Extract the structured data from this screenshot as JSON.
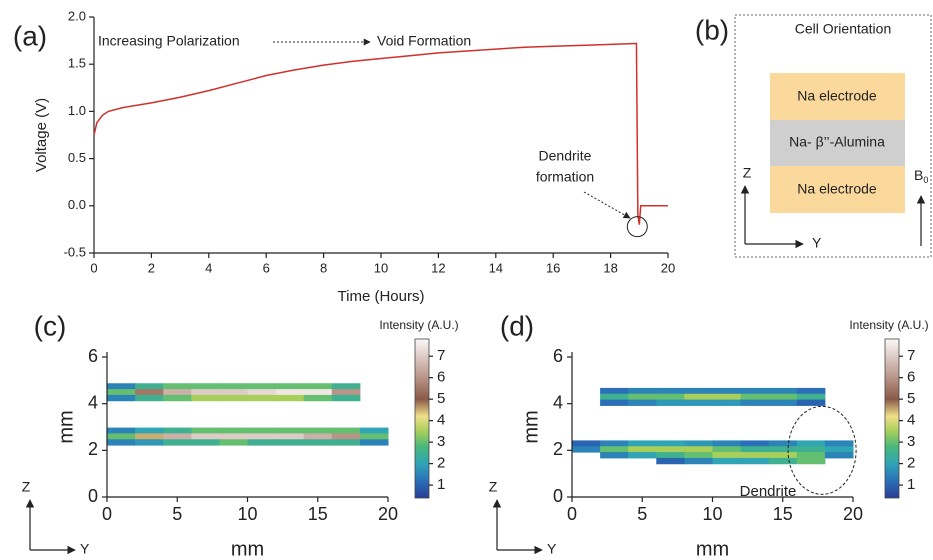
{
  "chart_data": [
    {
      "type": "line",
      "label": "(a)",
      "xlabel": "Time (Hours)",
      "ylabel": "Voltage (V)",
      "x": [
        0,
        0.1,
        0.3,
        0.5,
        1,
        2,
        3,
        4,
        5,
        6,
        7,
        8,
        9,
        10,
        11,
        12,
        13,
        14,
        15,
        16,
        17,
        18,
        18.9,
        18.95,
        19,
        19.05,
        20
      ],
      "series": [
        {
          "color": "#d0312d",
          "values": [
            0.75,
            0.88,
            0.96,
            1.0,
            1.04,
            1.09,
            1.15,
            1.22,
            1.3,
            1.38,
            1.44,
            1.49,
            1.53,
            1.56,
            1.59,
            1.62,
            1.64,
            1.66,
            1.68,
            1.69,
            1.7,
            1.71,
            1.72,
            -0.1,
            -0.2,
            0.0,
            0.0
          ]
        }
      ],
      "xlim": [
        0,
        20
      ],
      "xticks": [
        0,
        2,
        4,
        6,
        8,
        10,
        12,
        14,
        16,
        18,
        20
      ],
      "ylim": [
        -0.5,
        2.0
      ],
      "yticks": [
        -0.5,
        {
          "value": 0,
          "label": "0.0"
        },
        0.5,
        {
          "value": 1,
          "label": "1.0"
        },
        1.5,
        {
          "value": 2,
          "label": "2.0"
        }
      ],
      "annotations": [
        "Increasing Polarization",
        "Void Formation",
        "Dendrite",
        "formation"
      ]
    },
    {
      "type": "heatmap",
      "label": "(c)",
      "xlabel": "mm",
      "ylabel": "mm",
      "x": [
        1,
        3,
        5,
        7,
        9,
        11,
        13,
        15,
        17,
        19
      ],
      "y": [
        4.75,
        4.5,
        4.25,
        2.85,
        2.6,
        2.35
      ],
      "values": [
        [
          1.5,
          2.5,
          3,
          3,
          3,
          3,
          3,
          3,
          2.5,
          null
        ],
        [
          3,
          5.5,
          6.5,
          7,
          7,
          7.2,
          7.5,
          7.5,
          6,
          null
        ],
        [
          1.5,
          2.5,
          3,
          3.5,
          3.5,
          3.5,
          3.5,
          3,
          2.5,
          null
        ],
        [
          1.5,
          2,
          2.5,
          3,
          3,
          3,
          3,
          3,
          3,
          2
        ],
        [
          3,
          4.5,
          6.5,
          7,
          7,
          7,
          7,
          6.5,
          6,
          3
        ],
        [
          1.5,
          1.8,
          2.5,
          2.5,
          3,
          2.5,
          2.5,
          2.5,
          2.5,
          1.5
        ]
      ],
      "xlim": [
        0,
        20
      ],
      "xticks": [
        0,
        5,
        10,
        15,
        20
      ],
      "ylim": [
        0,
        6
      ],
      "yticks": [
        0,
        2,
        4,
        6
      ],
      "colorbar": {
        "title": "Intensity (A.U.)",
        "lim": [
          0.4,
          7.8
        ],
        "ticks": [
          1,
          2,
          3,
          4,
          5,
          6,
          7
        ],
        "colorscale": [
          [
            0.4,
            "#283d96"
          ],
          [
            1.2,
            "#2a6fb8"
          ],
          [
            2,
            "#2fa5b5"
          ],
          [
            2.8,
            "#49b87a"
          ],
          [
            3.5,
            "#a8cf5a"
          ],
          [
            4.2,
            "#f0e08a"
          ],
          [
            5,
            "#8a5a48"
          ],
          [
            6,
            "#b89488"
          ],
          [
            7.8,
            "#fbf8f8"
          ]
        ]
      },
      "axes": {
        "z": "Z",
        "y": "Y"
      }
    },
    {
      "type": "heatmap",
      "label": "(d)",
      "xlabel": "mm",
      "ylabel": "mm",
      "x": [
        1,
        3,
        5,
        7,
        9,
        11,
        13,
        15,
        17,
        19
      ],
      "y": [
        4.55,
        4.3,
        4.05,
        2.3,
        2.05,
        1.8,
        1.55
      ],
      "values": [
        [
          null,
          1.2,
          1.5,
          1.5,
          1.5,
          1.5,
          1.5,
          1.5,
          1.2,
          null
        ],
        [
          null,
          2.5,
          3,
          3,
          3.5,
          3.5,
          3,
          3,
          2.5,
          null
        ],
        [
          null,
          1.2,
          1.5,
          1.8,
          1.8,
          1.8,
          1.5,
          1.5,
          1,
          null
        ],
        [
          1,
          1.5,
          2,
          2,
          1.8,
          1.5,
          1.2,
          1.5,
          2,
          1.5
        ],
        [
          1.5,
          3,
          3.5,
          3.5,
          3.5,
          3,
          2.5,
          2.5,
          2.5,
          2
        ],
        [
          null,
          1.5,
          2,
          2.5,
          3,
          3.5,
          3.5,
          3.5,
          3,
          1.5
        ],
        [
          null,
          null,
          null,
          1,
          1.5,
          2,
          2,
          2.5,
          3,
          null
        ]
      ],
      "xlim": [
        0,
        20
      ],
      "xticks": [
        0,
        5,
        10,
        15,
        20
      ],
      "ylim": [
        0,
        6
      ],
      "yticks": [
        0,
        2,
        4,
        6
      ],
      "colorbar": {
        "title": "Intensity (A.U.)",
        "lim": [
          0.4,
          7.8
        ],
        "ticks": [
          1,
          2,
          3,
          4,
          5,
          6,
          7
        ],
        "colorscale": [
          [
            0.4,
            "#283d96"
          ],
          [
            1.2,
            "#2a6fb8"
          ],
          [
            2,
            "#2fa5b5"
          ],
          [
            2.8,
            "#49b87a"
          ],
          [
            3.5,
            "#a8cf5a"
          ],
          [
            4.2,
            "#f0e08a"
          ],
          [
            5,
            "#8a5a48"
          ],
          [
            6,
            "#b89488"
          ],
          [
            7.8,
            "#fbf8f8"
          ]
        ]
      },
      "axes": {
        "z": "Z",
        "y": "Y"
      },
      "annotation": "Dendrite"
    }
  ],
  "diagram": {
    "label": "(b)",
    "title": "Cell Orientation",
    "layers": [
      "Na electrode",
      "Na- β’’-Alumina",
      "Na electrode"
    ],
    "axes": {
      "z": "Z",
      "y": "Y",
      "field": "B",
      "field_subscript": "0"
    }
  }
}
